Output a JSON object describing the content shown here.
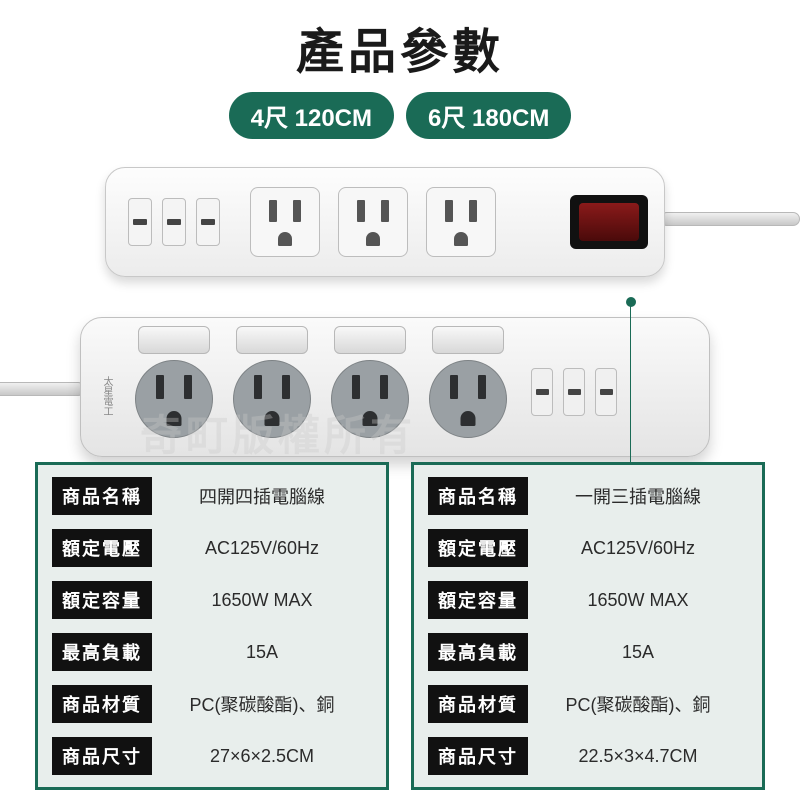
{
  "title": "產品參數",
  "sizes": [
    "4尺 120CM",
    "6尺 180CM"
  ],
  "watermark": "奇町版權所有",
  "colors": {
    "accent": "#1a6b56",
    "label_bg": "#111111",
    "panel_border": "#1a6b56",
    "panel_bg": "#e8eeec"
  },
  "strip_top": {
    "usb_count": 3,
    "outlet_count": 3,
    "has_main_switch": true
  },
  "strip_bottom": {
    "usb_count": 3,
    "outlet_count": 4,
    "per_outlet_switch": true,
    "brand_text": "太星電工"
  },
  "spec_labels": {
    "name": "商品名稱",
    "voltage": "額定電壓",
    "capacity": "額定容量",
    "max_load": "最高負載",
    "material": "商品材質",
    "dimensions": "商品尺寸"
  },
  "spec_left": {
    "name": "四開四插電腦線",
    "voltage": "AC125V/60Hz",
    "capacity": "1650W MAX",
    "max_load": "15A",
    "material": "PC(聚碳酸酯)、銅",
    "dimensions": "27×6×2.5CM"
  },
  "spec_right": {
    "name": "一開三插電腦線",
    "voltage": "AC125V/60Hz",
    "capacity": "1650W MAX",
    "max_load": "15A",
    "material": "PC(聚碳酸酯)、銅",
    "dimensions": "22.5×3×4.7CM"
  }
}
